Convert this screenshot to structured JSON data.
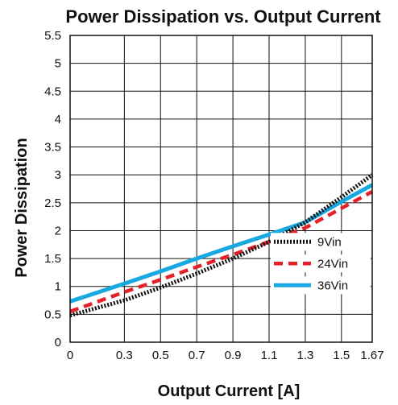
{
  "chart_data": {
    "type": "line",
    "title": "Power Dissipation vs. Output Current",
    "xlabel": "Output Current [A]",
    "ylabel": "Power Dissipation",
    "x_tick_labels": [
      "0",
      "0.3",
      "0.5",
      "0.7",
      "0.9",
      "1.1",
      "1.3",
      "1.5",
      "1.67"
    ],
    "y_tick_labels": [
      "0",
      "0.5",
      "1",
      "1.5",
      "2",
      "2.5",
      "3",
      "3.5",
      "4",
      "4.5",
      "5",
      "5.5"
    ],
    "xlim": [
      0,
      1.67
    ],
    "ylim": [
      0,
      5.5
    ],
    "grid": true,
    "legend_position": "bottom-right",
    "series": [
      {
        "name": "9Vin",
        "color": "#111111",
        "style": "dotted",
        "x": [
          0,
          0.3,
          0.5,
          0.7,
          0.9,
          1.1,
          1.3,
          1.5,
          1.67
        ],
        "y": [
          0.48,
          0.75,
          0.98,
          1.23,
          1.5,
          1.8,
          2.15,
          2.6,
          3.0
        ]
      },
      {
        "name": "24Vin",
        "color": "#e32228",
        "style": "dashed",
        "x": [
          0,
          0.3,
          0.5,
          0.7,
          0.9,
          1.1,
          1.3,
          1.5,
          1.67
        ],
        "y": [
          0.55,
          0.9,
          1.12,
          1.35,
          1.57,
          1.8,
          2.05,
          2.4,
          2.7
        ]
      },
      {
        "name": "36Vin",
        "color": "#19a8e0",
        "style": "solid",
        "x": [
          0,
          0.3,
          0.5,
          0.7,
          0.9,
          1.1,
          1.3,
          1.5,
          1.67
        ],
        "y": [
          0.73,
          1.05,
          1.27,
          1.5,
          1.72,
          1.93,
          2.15,
          2.52,
          2.82
        ]
      }
    ]
  }
}
